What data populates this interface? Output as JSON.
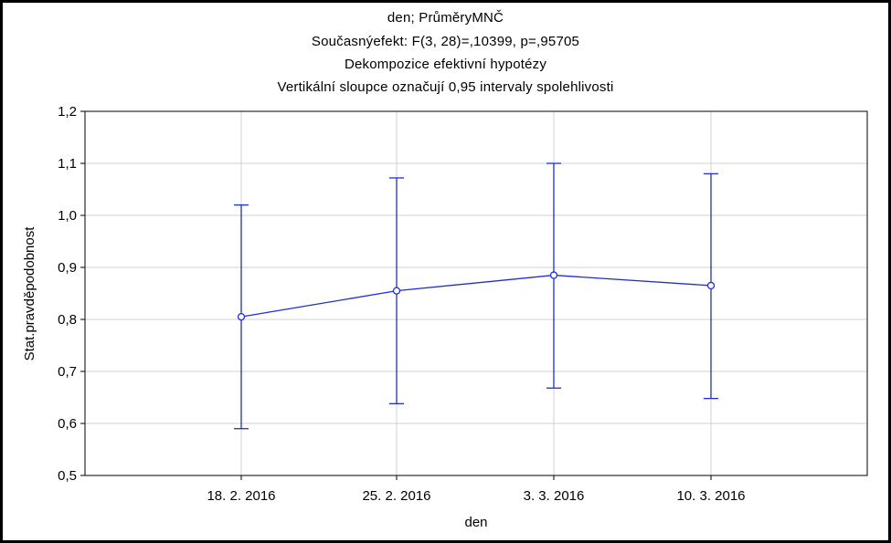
{
  "chart_data": {
    "type": "line",
    "title_lines": [
      "den; PrůměryMNČ",
      "Současnýefekt: F(3, 28)=,10399, p=,95705",
      "Dekompozice efektivní hypotézy",
      "Vertikální sloupce označují 0,95 intervaly spolehlivosti"
    ],
    "xlabel": "den",
    "ylabel": "Stat.pravděpodobnost",
    "categories": [
      "18. 2. 2016",
      "25. 2. 2016",
      "3. 3. 2016",
      "10. 3. 2016"
    ],
    "series": [
      {
        "values": [
          0.805,
          0.855,
          0.885,
          0.865
        ],
        "ci_low": [
          0.59,
          0.638,
          0.668,
          0.648
        ],
        "ci_high": [
          1.02,
          1.072,
          1.1,
          1.08
        ]
      }
    ],
    "ylim": [
      0.5,
      1.2
    ],
    "yticks": [
      "0,5",
      "0,6",
      "0,7",
      "0,8",
      "0,9",
      "1,0",
      "1,1",
      "1,2"
    ],
    "grid": true,
    "colors": {
      "series": "#1f2ed6",
      "grid": "#d0d0d0",
      "axis": "#000000"
    }
  }
}
